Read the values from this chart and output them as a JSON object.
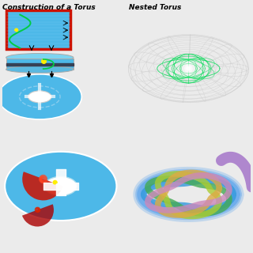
{
  "bg_color": "#ebebeb",
  "title_left": "Construction of a Torus",
  "title_right": "Nested Torus",
  "title_fontsize": 6.5,
  "title_style": "italic",
  "title_weight": "bold",
  "sky_blue": "#4db8e8",
  "dark_blue": "#2288bb",
  "red_dark": "#cc1100",
  "red_mid": "#dd3322",
  "yellow": "#ffee00",
  "green": "#00cc44",
  "white": "#ffffff",
  "black": "#000000",
  "gray_wire": "#bbbbbb",
  "green_wire": "#00dd55"
}
